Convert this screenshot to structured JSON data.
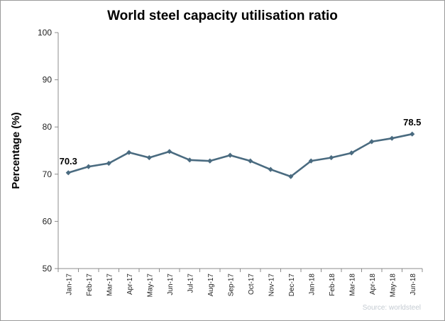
{
  "chart_data": {
    "type": "line",
    "title": "World steel capacity utilisation ratio",
    "xlabel": "",
    "ylabel": "Percentage (%)",
    "ylim": [
      50,
      100
    ],
    "yticks": [
      50,
      60,
      70,
      80,
      90,
      100
    ],
    "grid": false,
    "legend": "none",
    "categories": [
      "Jan-17",
      "Feb-17",
      "Mar-17",
      "Apr-17",
      "May-17",
      "Jun-17",
      "Jul-17",
      "Aug-17",
      "Sep-17",
      "Oct-17",
      "Nov-17",
      "Dec-17",
      "Jan-18",
      "Feb-18",
      "Mar-18",
      "Apr-18",
      "May-18",
      "Jun-18"
    ],
    "series": [
      {
        "values": [
          70.3,
          71.6,
          72.3,
          74.6,
          73.5,
          74.8,
          73.0,
          72.8,
          74.0,
          72.8,
          71.0,
          69.5,
          72.8,
          73.5,
          74.5,
          76.9,
          77.6,
          78.5
        ],
        "color": "#4a6b80"
      }
    ],
    "annotations": [
      {
        "index": 0,
        "text": "70.3"
      },
      {
        "index": 17,
        "text": "78.5"
      }
    ],
    "source": "Source: worldsteel"
  }
}
